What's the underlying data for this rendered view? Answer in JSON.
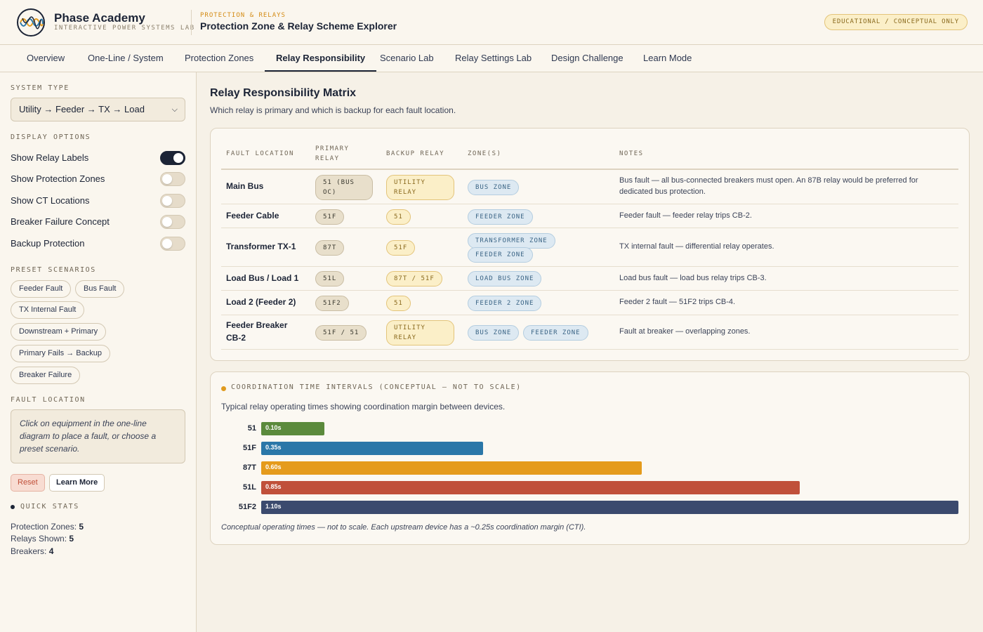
{
  "header": {
    "brand_title": "Phase Academy",
    "brand_sub": "INTERACTIVE POWER SYSTEMS LAB",
    "kicker": "PROTECTION & RELAYS",
    "title": "Protection Zone & Relay Scheme Explorer",
    "badge": "EDUCATIONAL / CONCEPTUAL ONLY",
    "logo_icon": "phase-wave-logo-icon"
  },
  "tabs": [
    {
      "label": "Overview"
    },
    {
      "label": "One-Line / System"
    },
    {
      "label": "Protection Zones"
    },
    {
      "label": "Relay Responsibility",
      "active": true
    },
    {
      "label": "Scenario Lab"
    },
    {
      "label": "Relay Settings Lab"
    },
    {
      "label": "Design Challenge"
    },
    {
      "label": "Learn Mode"
    }
  ],
  "sidebar": {
    "system_type_label": "SYSTEM TYPE",
    "system_type_value": "Utility → Feeder → TX → Load",
    "display_options_label": "DISPLAY OPTIONS",
    "toggles": [
      {
        "label": "Show Relay Labels",
        "on": true
      },
      {
        "label": "Show Protection Zones",
        "on": false
      },
      {
        "label": "Show CT Locations",
        "on": false
      },
      {
        "label": "Breaker Failure Concept",
        "on": false
      },
      {
        "label": "Backup Protection",
        "on": false
      }
    ],
    "preset_label": "PRESET SCENARIOS",
    "presets": [
      "Feeder Fault",
      "Bus Fault",
      "TX Internal Fault",
      "Downstream + Primary",
      "Primary Fails → Backup",
      "Breaker Failure"
    ],
    "fault_location_label": "FAULT LOCATION",
    "fault_hint": "Click on equipment in the one-line diagram to place a fault, or choose a preset scenario.",
    "reset_label": "Reset",
    "learn_more_label": "Learn More",
    "quick_stats_label": "QUICK STATS",
    "stats": [
      {
        "label": "Protection Zones:",
        "value": "5"
      },
      {
        "label": "Relays Shown:",
        "value": "5"
      },
      {
        "label": "Breakers:",
        "value": "4"
      }
    ]
  },
  "matrix": {
    "title": "Relay Responsibility Matrix",
    "subtitle": "Which relay is primary and which is backup for each fault location.",
    "headers": {
      "fault_location": "FAULT LOCATION",
      "primary_relay": "PRIMARY RELAY",
      "backup_relay": "BACKUP RELAY",
      "zones": "ZONE(S)",
      "notes": "NOTES"
    },
    "rows": [
      {
        "location": "Main Bus",
        "primary": "51 (BUS OC)",
        "backup": "UTILITY RELAY",
        "zones": [
          "BUS ZONE"
        ],
        "notes": "Bus fault — all bus-connected breakers must open. An 87B relay would be preferred for dedicated bus protection."
      },
      {
        "location": "Feeder Cable",
        "primary": "51F",
        "backup": "51",
        "zones": [
          "FEEDER ZONE"
        ],
        "notes": "Feeder fault — feeder relay trips CB-2."
      },
      {
        "location": "Transformer TX-1",
        "primary": "87T",
        "backup": "51F",
        "zones": [
          "TRANSFORMER ZONE",
          "FEEDER ZONE"
        ],
        "notes": "TX internal fault — differential relay operates."
      },
      {
        "location": "Load Bus / Load 1",
        "primary": "51L",
        "backup": "87T / 51F",
        "zones": [
          "LOAD BUS ZONE"
        ],
        "notes": "Load bus fault — load bus relay trips CB-3."
      },
      {
        "location": "Load 2 (Feeder 2)",
        "primary": "51F2",
        "backup": "51",
        "zones": [
          "FEEDER 2 ZONE"
        ],
        "notes": "Feeder 2 fault — 51F2 trips CB-4."
      },
      {
        "location": "Feeder Breaker CB-2",
        "primary": "51F / 51",
        "backup": "UTILITY RELAY",
        "zones": [
          "BUS ZONE",
          "FEEDER ZONE"
        ],
        "notes": "Fault at breaker — overlapping zones."
      }
    ]
  },
  "coordination": {
    "title": "COORDINATION TIME INTERVALS (CONCEPTUAL — NOT TO SCALE)",
    "subtitle": "Typical relay operating times showing coordination margin between devices.",
    "footnote": "Conceptual operating times — not to scale. Each upstream device has a ~0.25s coordination margin (CTI).",
    "chart_data": {
      "type": "bar",
      "orientation": "horizontal",
      "categories": [
        "51",
        "51F",
        "87T",
        "51L",
        "51F2"
      ],
      "values": [
        0.1,
        0.35,
        0.6,
        0.85,
        1.1
      ],
      "value_labels": [
        "0.10s",
        "0.35s",
        "0.60s",
        "0.85s",
        "1.10s"
      ],
      "colors": [
        "#5b8a3c",
        "#2a77a8",
        "#e59b1c",
        "#c0503a",
        "#3b4a6e"
      ],
      "xlim": [
        0,
        1.1
      ]
    }
  }
}
